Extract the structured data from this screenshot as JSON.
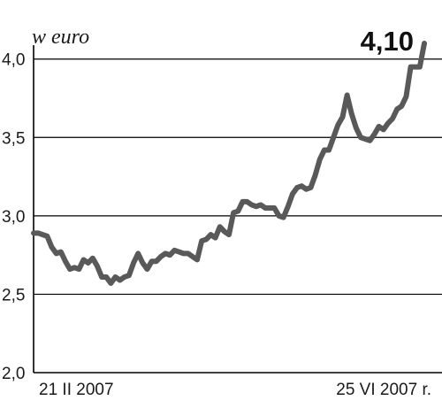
{
  "chart_data": {
    "type": "line",
    "title": "",
    "unit_label": "w euro",
    "last_value_label": "4,10",
    "xlabel": "",
    "ylabel": "",
    "x_start_label": "21 II 2007",
    "x_end_label": "25 VI 2007 r.",
    "ylim": [
      2.0,
      4.1
    ],
    "yticks": [
      {
        "value": 2.0,
        "label": "2,0"
      },
      {
        "value": 2.5,
        "label": "2,5"
      },
      {
        "value": 3.0,
        "label": "3,0"
      },
      {
        "value": 3.5,
        "label": "3,5"
      },
      {
        "value": 4.0,
        "label": "4,0"
      }
    ],
    "grid": true,
    "line_color": "#595959",
    "x_start_date": "2007-02-21",
    "x_end_date": "2007-06-25",
    "series": [
      {
        "name": "",
        "values": [
          2.89,
          2.89,
          2.88,
          2.87,
          2.8,
          2.76,
          2.77,
          2.71,
          2.66,
          2.67,
          2.66,
          2.72,
          2.7,
          2.73,
          2.68,
          2.61,
          2.61,
          2.57,
          2.61,
          2.59,
          2.61,
          2.62,
          2.7,
          2.76,
          2.7,
          2.66,
          2.71,
          2.71,
          2.74,
          2.76,
          2.75,
          2.78,
          2.77,
          2.76,
          2.76,
          2.74,
          2.72,
          2.84,
          2.85,
          2.88,
          2.86,
          2.93,
          2.9,
          2.88,
          3.02,
          3.03,
          3.09,
          3.09,
          3.07,
          3.06,
          3.07,
          3.05,
          3.05,
          3.05,
          3.0,
          2.99,
          3.06,
          3.14,
          3.18,
          3.19,
          3.17,
          3.18,
          3.26,
          3.36,
          3.42,
          3.42,
          3.5,
          3.58,
          3.63,
          3.77,
          3.65,
          3.56,
          3.5,
          3.49,
          3.48,
          3.52,
          3.57,
          3.55,
          3.59,
          3.62,
          3.68,
          3.7,
          3.76,
          3.95,
          3.95,
          3.95,
          4.1
        ]
      }
    ]
  }
}
